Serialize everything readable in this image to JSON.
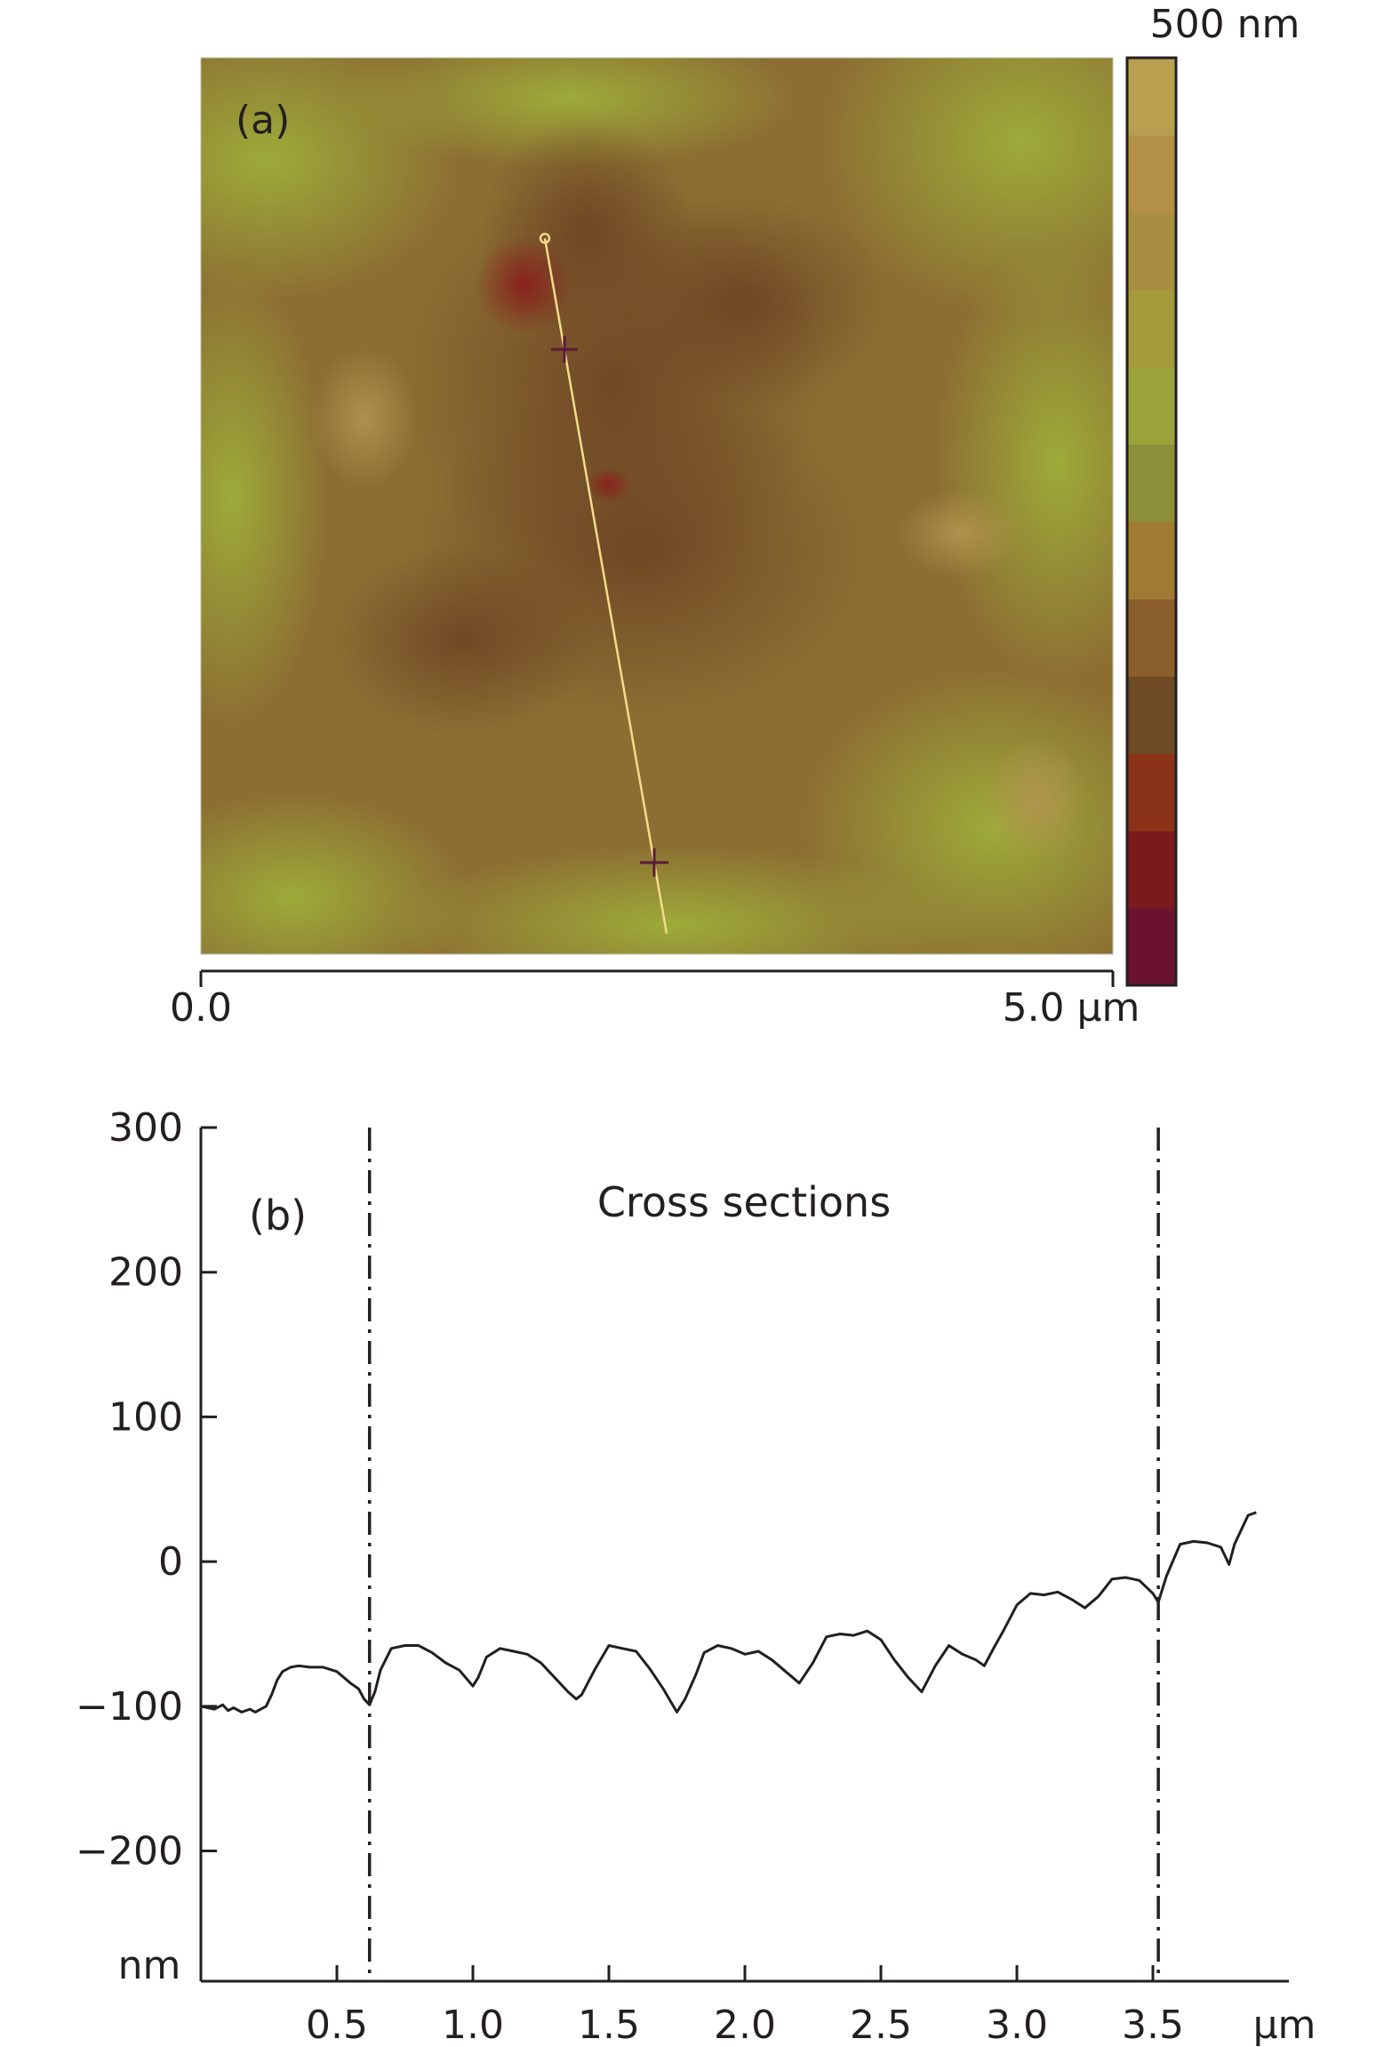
{
  "panel_a": {
    "label": "(a)",
    "scale_max": "500 nm",
    "scan_axis": {
      "start": "0.0",
      "end": "5.0 µm"
    },
    "colorbar_colors": [
      "#6b1230",
      "#7a1a1c",
      "#8b3318",
      "#6e4a26",
      "#8a5f2c",
      "#a07a32",
      "#8e8f3a",
      "#9aa43a",
      "#a39a3a",
      "#a88e40",
      "#b29048",
      "#b8a050"
    ],
    "section_line": {
      "color": "#f2dc8c",
      "marker_color": "#5a1a3a"
    }
  },
  "chart_data": {
    "type": "line",
    "title": "Cross sections",
    "panel_label": "(b)",
    "xlabel": "µm",
    "ylabel": "nm",
    "xlim": [
      0,
      4.0
    ],
    "ylim": [
      -290,
      300
    ],
    "xticks": [
      0.5,
      1.0,
      1.5,
      2.0,
      2.5,
      3.0,
      3.5
    ],
    "xtick_labels": [
      "0.5",
      "1.0",
      "1.5",
      "2.0",
      "2.5",
      "3.0",
      "3.5"
    ],
    "yticks": [
      300,
      200,
      100,
      0,
      -100,
      -200
    ],
    "ytick_labels": [
      "300",
      "200",
      "100",
      "0",
      "−100",
      "−200"
    ],
    "markers_x": [
      0.62,
      3.52
    ],
    "x": [
      0.0,
      0.05,
      0.08,
      0.1,
      0.12,
      0.15,
      0.18,
      0.2,
      0.24,
      0.26,
      0.28,
      0.3,
      0.33,
      0.36,
      0.4,
      0.45,
      0.5,
      0.55,
      0.58,
      0.6,
      0.62,
      0.64,
      0.66,
      0.7,
      0.75,
      0.8,
      0.85,
      0.9,
      0.95,
      1.0,
      1.02,
      1.05,
      1.1,
      1.15,
      1.2,
      1.25,
      1.3,
      1.35,
      1.38,
      1.4,
      1.45,
      1.5,
      1.55,
      1.6,
      1.65,
      1.7,
      1.75,
      1.78,
      1.82,
      1.85,
      1.9,
      1.95,
      2.0,
      2.05,
      2.1,
      2.15,
      2.2,
      2.25,
      2.3,
      2.35,
      2.4,
      2.45,
      2.5,
      2.55,
      2.6,
      2.65,
      2.7,
      2.75,
      2.8,
      2.85,
      2.88,
      2.92,
      2.95,
      3.0,
      3.05,
      3.1,
      3.15,
      3.2,
      3.25,
      3.3,
      3.35,
      3.4,
      3.45,
      3.5,
      3.52,
      3.55,
      3.6,
      3.65,
      3.7,
      3.75,
      3.78,
      3.8,
      3.85,
      3.88
    ],
    "y": [
      -100,
      -102,
      -99,
      -103,
      -101,
      -104,
      -102,
      -104,
      -100,
      -92,
      -82,
      -76,
      -73,
      -72,
      -73,
      -73,
      -76,
      -84,
      -88,
      -95,
      -99,
      -90,
      -75,
      -60,
      -58,
      -58,
      -63,
      -70,
      -75,
      -86,
      -80,
      -66,
      -60,
      -62,
      -64,
      -70,
      -80,
      -90,
      -95,
      -92,
      -74,
      -58,
      -60,
      -62,
      -74,
      -88,
      -104,
      -95,
      -78,
      -63,
      -58,
      -60,
      -64,
      -62,
      -68,
      -76,
      -84,
      -70,
      -52,
      -50,
      -51,
      -48,
      -54,
      -68,
      -80,
      -90,
      -72,
      -58,
      -64,
      -68,
      -72,
      -58,
      -48,
      -30,
      -22,
      -23,
      -21,
      -26,
      -32,
      -24,
      -12,
      -11,
      -13,
      -22,
      -28,
      -10,
      12,
      14,
      13,
      10,
      -2,
      12,
      32,
      34
    ]
  }
}
